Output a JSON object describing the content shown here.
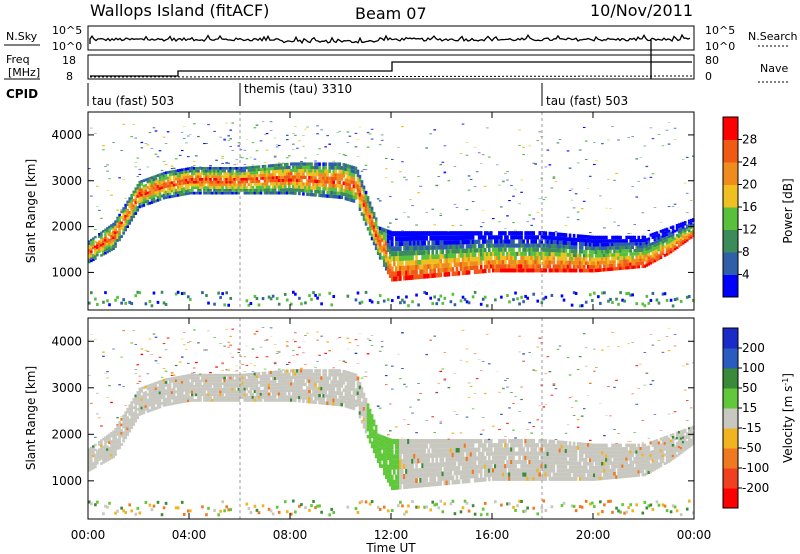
{
  "header": {
    "station": "Wallops Island (fitACF)",
    "beam": "Beam 07",
    "date": "10/Nov/2011"
  },
  "top_panels": {
    "nsky_label": "N.Sky",
    "nsky_ticks": [
      "10^5",
      "10^0"
    ],
    "nsearch_label": "N.Search",
    "nsearch_ticks": [
      "10^5",
      "10^0"
    ],
    "freq_label_line1": "Freq",
    "freq_label_line2": "[MHz]",
    "freq_ticks": [
      "18",
      "8"
    ],
    "nave_label": "Nave",
    "nave_ticks": [
      "80",
      "0"
    ],
    "cpid_label": "CPID",
    "cpid_segments": [
      {
        "label": "tau (fast) 503",
        "start": 0,
        "end": 6
      },
      {
        "label": "themis (tau) 3310",
        "start": 6,
        "end": 18
      },
      {
        "label": "tau (fast) 503",
        "start": 18,
        "end": 24
      }
    ]
  },
  "colors": {
    "power_scale": [
      "#0000ff",
      "#2f5fa8",
      "#3c8c5a",
      "#59c03c",
      "#f0c020",
      "#f08c1e",
      "#f05a14",
      "#ff0000"
    ],
    "velocity_scale": [
      "#1b2bc8",
      "#2a5cc0",
      "#3a8a3a",
      "#60c83a",
      "#c8c8c0",
      "#f0b420",
      "#f07820",
      "#f04020",
      "#ff0000"
    ]
  },
  "chart_data": [
    {
      "type": "heatmap",
      "title": "Power",
      "xlabel": "",
      "ylabel": "Slant Range [km]",
      "xlim": [
        0,
        24
      ],
      "ylim": [
        180,
        4500
      ],
      "yticks": [
        1000,
        2000,
        3000,
        4000
      ],
      "colorbar": {
        "label": "Power [dB]",
        "ticks": [
          4,
          8,
          12,
          16,
          20,
          24,
          28
        ],
        "range": [
          0,
          32
        ]
      },
      "echo_bands": [
        {
          "x": [
            0,
            1,
            2,
            3,
            4,
            6,
            8,
            10,
            10.6,
            11.5,
            12,
            14,
            16,
            18,
            20,
            22,
            23,
            24
          ],
          "range_low_km": [
            1200,
            1500,
            2400,
            2600,
            2700,
            2700,
            2700,
            2600,
            2500,
            1300,
            800,
            900,
            1000,
            1000,
            1000,
            1100,
            1400,
            1800
          ],
          "range_high_km": [
            1700,
            2100,
            3000,
            3200,
            3300,
            3300,
            3400,
            3400,
            3300,
            2000,
            1900,
            1900,
            1900,
            1900,
            1800,
            1800,
            2000,
            2200
          ],
          "core_power_db": 28
        }
      ]
    },
    {
      "type": "heatmap",
      "title": "Velocity",
      "xlabel": "Time UT",
      "ylabel": "Slant Range [km]",
      "xlim": [
        0,
        24
      ],
      "ylim": [
        180,
        4500
      ],
      "xticks": [
        "00:00",
        "04:00",
        "08:00",
        "12:00",
        "16:00",
        "20:00",
        "00:00"
      ],
      "yticks": [
        1000,
        2000,
        3000,
        4000
      ],
      "colorbar": {
        "label": "Velocity [m s-1]",
        "ticks": [
          200,
          100,
          50,
          15,
          -15,
          -50,
          -100,
          -200
        ]
      },
      "ground_scatter_velocity": 0
    }
  ]
}
